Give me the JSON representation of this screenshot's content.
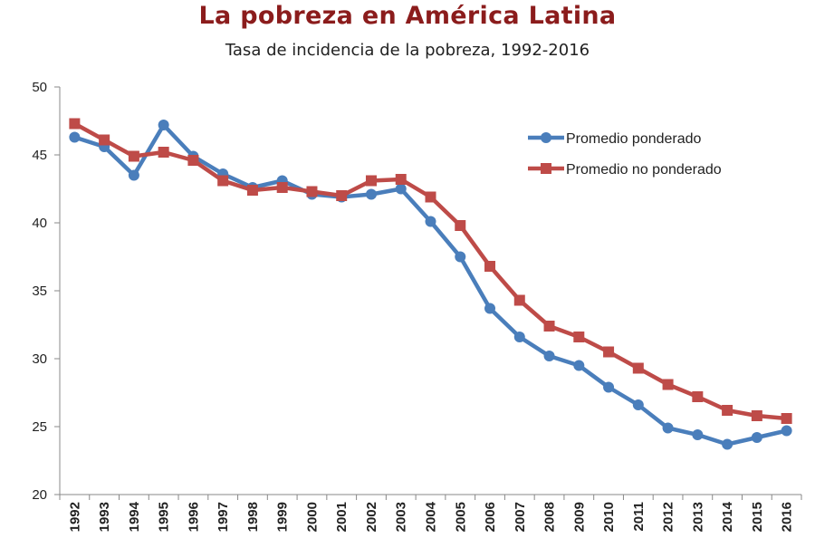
{
  "chart_data": {
    "type": "line",
    "title": "La pobreza en América Latina",
    "subtitle": "Tasa de incidencia de la pobreza, 1992-2016",
    "xlabel": "",
    "ylabel": "",
    "ylim": [
      20,
      50
    ],
    "yticks": [
      "20",
      "25",
      "30",
      "35",
      "40",
      "45",
      "50"
    ],
    "grid": false,
    "legend_position": "top-right",
    "categories": [
      "1992",
      "1993",
      "1994",
      "1995",
      "1996",
      "1997",
      "1998",
      "1999",
      "2000",
      "2001",
      "2002",
      "2003",
      "2004",
      "2005",
      "2006",
      "2007",
      "2008",
      "2009",
      "2010",
      "2011",
      "2012",
      "2013",
      "2014",
      "2015",
      "2016"
    ],
    "series": [
      {
        "name": "Promedio ponderado",
        "color": "#4a7ebb",
        "marker": "circle",
        "values": [
          46.3,
          45.6,
          43.5,
          47.2,
          44.9,
          43.6,
          42.6,
          43.1,
          42.1,
          41.9,
          42.1,
          42.5,
          40.1,
          37.5,
          33.7,
          31.6,
          30.2,
          29.5,
          27.9,
          26.6,
          24.9,
          24.4,
          23.7,
          24.2,
          24.7
        ]
      },
      {
        "name": "Promedio no ponderado",
        "color": "#be4b48",
        "marker": "square",
        "values": [
          47.3,
          46.1,
          44.9,
          45.2,
          44.6,
          43.1,
          42.4,
          42.6,
          42.3,
          42.0,
          43.1,
          43.2,
          41.9,
          39.8,
          36.8,
          34.3,
          32.4,
          31.6,
          30.5,
          29.3,
          28.1,
          27.2,
          26.2,
          25.8,
          25.6
        ]
      }
    ]
  }
}
